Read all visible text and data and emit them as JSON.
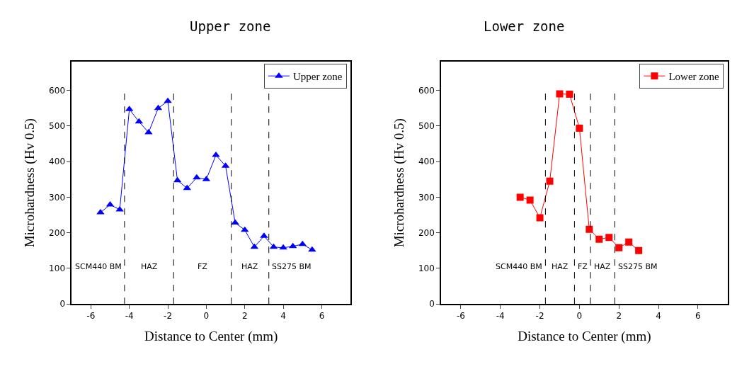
{
  "chart_data": [
    {
      "type": "line",
      "title": "Upper zone",
      "xlabel": "Distance to Center (mm)",
      "ylabel": "Microhardness (Hv 0.5)",
      "x": [
        -5.5,
        -5,
        -4.5,
        -4,
        -3.5,
        -3,
        -2.5,
        -2,
        -1.5,
        -1,
        -0.5,
        0,
        0.5,
        1,
        1.5,
        2,
        2.5,
        3,
        3.5,
        4,
        4.5,
        5,
        5.5
      ],
      "series": [
        {
          "name": "Upper zone",
          "color": "#0000ff",
          "values": [
            257,
            279,
            265,
            547,
            512,
            482,
            550,
            570,
            347,
            325,
            355,
            350,
            418,
            388,
            228,
            208,
            160,
            191,
            160,
            158,
            162,
            168,
            152
          ]
        }
      ],
      "marker": "triangle",
      "legend": "top right",
      "xlim": [
        -7,
        7.5
      ],
      "xticks": [
        -6,
        -4,
        -2,
        0,
        2,
        4,
        6
      ],
      "ylim": [
        0,
        680
      ],
      "yticks": [
        0,
        100,
        200,
        300,
        400,
        500,
        600
      ],
      "ref_lines": [
        {
          "axis": "x",
          "value": -4.25,
          "line_style": "dashed",
          "color": "#000000"
        },
        {
          "axis": "x",
          "value": -1.7,
          "line_style": "dashed",
          "color": "#000000"
        },
        {
          "axis": "x",
          "value": 1.3,
          "line_style": "dashed",
          "color": "#000000"
        },
        {
          "axis": "x",
          "value": 3.25,
          "line_style": "dashed",
          "color": "#000000"
        }
      ],
      "annotations": [
        "SCM440 BM",
        "HAZ",
        "FZ",
        "HAZ",
        "SS275 BM"
      ]
    },
    {
      "type": "line",
      "title": "Lower zone",
      "xlabel": "Distance to Center (mm)",
      "ylabel": "Microhardness (Hv 0.5)",
      "x": [
        -3,
        -2.5,
        -2,
        -1.5,
        -1,
        -0.5,
        0,
        0.5,
        1,
        1.5,
        2,
        2.5,
        3
      ],
      "series": [
        {
          "name": "Lower zone",
          "color": "#ff0000",
          "values": [
            300,
            292,
            242,
            345,
            590,
            589,
            494,
            210,
            182,
            187,
            158,
            174,
            150
          ]
        }
      ],
      "marker": "square",
      "legend": "top right",
      "xlim": [
        -7,
        7.5
      ],
      "xticks": [
        -6,
        -4,
        -2,
        0,
        2,
        4,
        6
      ],
      "ylim": [
        0,
        680
      ],
      "yticks": [
        0,
        100,
        200,
        300,
        400,
        500,
        600
      ],
      "ref_lines": [
        {
          "axis": "x",
          "value": -1.72,
          "line_style": "dashed",
          "color": "#000000"
        },
        {
          "axis": "x",
          "value": -0.25,
          "line_style": "dashed",
          "color": "#000000"
        },
        {
          "axis": "x",
          "value": 0.56,
          "line_style": "dashed",
          "color": "#000000"
        },
        {
          "axis": "x",
          "value": 1.79,
          "line_style": "dashed",
          "color": "#000000"
        }
      ],
      "annotations": [
        "SCM440 BM",
        "HAZ",
        "FZ",
        "HAZ",
        "SS275 BM"
      ]
    }
  ]
}
